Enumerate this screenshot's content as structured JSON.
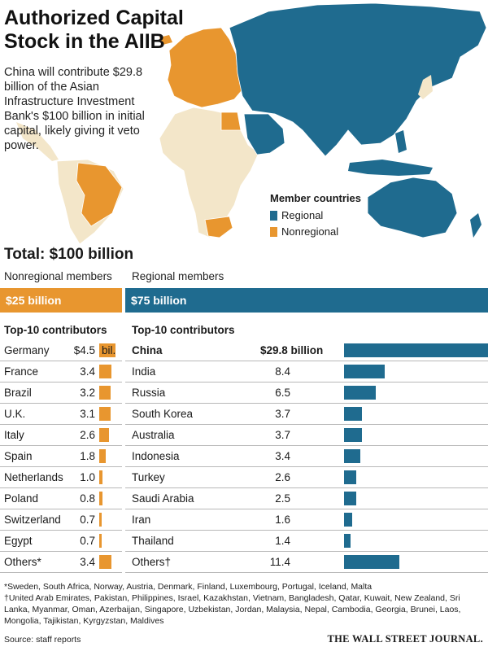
{
  "header": {
    "title_line1": "Authorized Capital",
    "title_line2": "Stock in the AIIB",
    "subtitle": "China will contribute $29.8 billion of the Asian Infrastructure Investment Bank's $100 billion in initial capital, likely giving it veto power."
  },
  "legend": {
    "title": "Member countries",
    "regional": "Regional",
    "nonregional": "Nonregional"
  },
  "colors": {
    "regional": "#1f6b8f",
    "nonregional": "#e8962f",
    "land": "#f3e6c9",
    "row_line": "#b8b8b8"
  },
  "total_label": "Total: $100 billion",
  "chart_data": [
    {
      "type": "bar",
      "group_label": "Nonregional members",
      "band_label": "$25 billion",
      "section_title": "Top-10 contributors",
      "unit": "bil.",
      "value_max": 29.8,
      "rows": [
        {
          "name": "Germany",
          "value": 4.5,
          "label": "$4.5"
        },
        {
          "name": "France",
          "value": 3.4,
          "label": "3.4"
        },
        {
          "name": "Brazil",
          "value": 3.2,
          "label": "3.2"
        },
        {
          "name": "U.K.",
          "value": 3.1,
          "label": "3.1"
        },
        {
          "name": "Italy",
          "value": 2.6,
          "label": "2.6"
        },
        {
          "name": "Spain",
          "value": 1.8,
          "label": "1.8"
        },
        {
          "name": "Netherlands",
          "value": 1.0,
          "label": "1.0"
        },
        {
          "name": "Poland",
          "value": 0.8,
          "label": "0.8"
        },
        {
          "name": "Switzerland",
          "value": 0.7,
          "label": "0.7"
        },
        {
          "name": "Egypt",
          "value": 0.7,
          "label": "0.7"
        },
        {
          "name": "Others*",
          "value": 3.4,
          "label": "3.4"
        }
      ]
    },
    {
      "type": "bar",
      "group_label": "Regional members",
      "band_label": "$75 billion",
      "section_title": "Top-10 contributors",
      "value_max": 29.8,
      "rows": [
        {
          "name": "China",
          "value": 29.8,
          "label": "$29.8 billion"
        },
        {
          "name": "India",
          "value": 8.4,
          "label": "8.4"
        },
        {
          "name": "Russia",
          "value": 6.5,
          "label": "6.5"
        },
        {
          "name": "South Korea",
          "value": 3.7,
          "label": "3.7"
        },
        {
          "name": "Australia",
          "value": 3.7,
          "label": "3.7"
        },
        {
          "name": "Indonesia",
          "value": 3.4,
          "label": "3.4"
        },
        {
          "name": "Turkey",
          "value": 2.6,
          "label": "2.6"
        },
        {
          "name": "Saudi Arabia",
          "value": 2.5,
          "label": "2.5"
        },
        {
          "name": "Iran",
          "value": 1.6,
          "label": "1.6"
        },
        {
          "name": "Thailand",
          "value": 1.4,
          "label": "1.4"
        },
        {
          "name": "Others†",
          "value": 11.4,
          "label": "11.4"
        }
      ]
    }
  ],
  "footnotes": {
    "star": "*Sweden, South Africa, Norway, Austria, Denmark, Finland, Luxembourg, Portugal, Iceland, Malta",
    "dagger": "†United Arab Emirates, Pakistan, Philippines, Israel, Kazakhstan, Vietnam, Bangladesh, Qatar, Kuwait, New Zealand, Sri Lanka, Myanmar, Oman, Azerbaijan, Singapore, Uzbekistan, Jordan, Malaysia, Nepal, Cambodia, Georgia, Brunei, Laos, Mongolia, Tajikistan, Kyrgyzstan, Maldives"
  },
  "source": "Source: staff reports",
  "publisher": "THE WALL STREET JOURNAL."
}
